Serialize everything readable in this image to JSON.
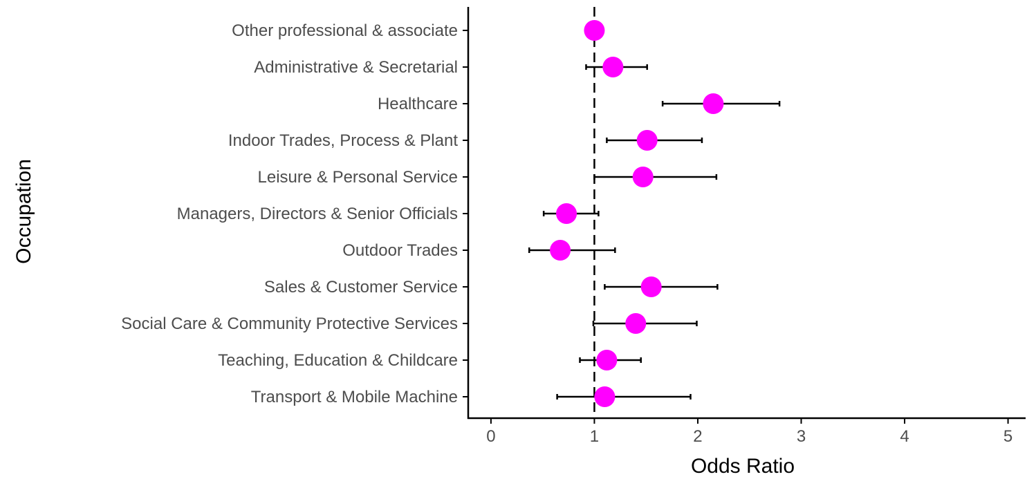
{
  "chart_data": {
    "type": "scatter",
    "subtype": "forest-plot",
    "title": "",
    "xlabel": "Odds Ratio",
    "ylabel": "Occupation",
    "xlim": [
      -0.22,
      5.17
    ],
    "x_ticks": [
      0,
      1,
      2,
      3,
      4,
      5
    ],
    "reference_line": {
      "x": 1,
      "style": "dashed"
    },
    "grid": false,
    "legend": "none",
    "point_color": "#ff00ff",
    "errorbar_color": "#000000",
    "categories": [
      "Other professional & associate",
      "Administrative & Secretarial",
      "Healthcare",
      "Indoor Trades, Process & Plant",
      "Leisure & Personal Service",
      "Managers, Directors & Senior Officials",
      "Outdoor Trades",
      "Sales & Customer Service",
      "Social Care & Community Protective Services",
      "Teaching, Education & Childcare",
      "Transport & Mobile Machine"
    ],
    "points": [
      {
        "occupation": "Other professional & associate",
        "or": 1.0,
        "lower": 1.0,
        "upper": 1.0
      },
      {
        "occupation": "Administrative & Secretarial",
        "or": 1.18,
        "lower": 0.92,
        "upper": 1.51
      },
      {
        "occupation": "Healthcare",
        "or": 2.15,
        "lower": 1.66,
        "upper": 2.79
      },
      {
        "occupation": "Indoor Trades, Process & Plant",
        "or": 1.51,
        "lower": 1.12,
        "upper": 2.04
      },
      {
        "occupation": "Leisure & Personal Service",
        "or": 1.47,
        "lower": 1.0,
        "upper": 2.18
      },
      {
        "occupation": "Managers, Directors & Senior Officials",
        "or": 0.73,
        "lower": 0.51,
        "upper": 1.04
      },
      {
        "occupation": "Outdoor Trades",
        "or": 0.67,
        "lower": 0.37,
        "upper": 1.2
      },
      {
        "occupation": "Sales & Customer Service",
        "or": 1.55,
        "lower": 1.1,
        "upper": 2.19
      },
      {
        "occupation": "Social Care & Community Protective Services",
        "or": 1.4,
        "lower": 0.99,
        "upper": 1.99
      },
      {
        "occupation": "Teaching, Education & Childcare",
        "or": 1.12,
        "lower": 0.86,
        "upper": 1.45
      },
      {
        "occupation": "Transport & Mobile Machine",
        "or": 1.1,
        "lower": 0.64,
        "upper": 1.93
      }
    ]
  }
}
